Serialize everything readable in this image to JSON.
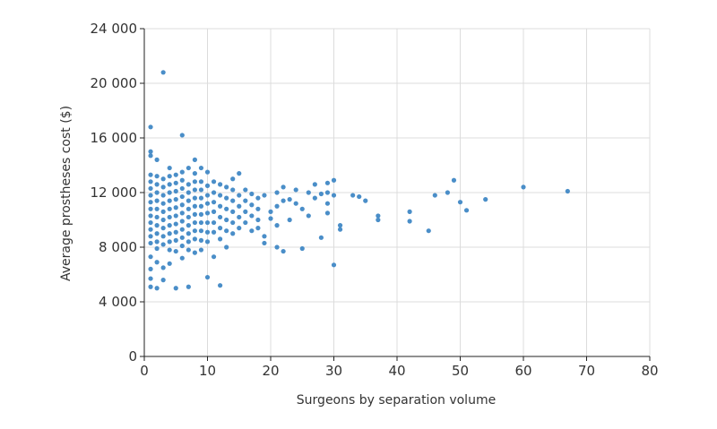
{
  "chart_data": {
    "type": "scatter",
    "title": "",
    "xlabel": "Surgeons by separation volume",
    "ylabel": "Average prostheses cost ($)",
    "xlim": [
      0,
      80
    ],
    "ylim": [
      0,
      24000
    ],
    "x_ticks": [
      0,
      10,
      20,
      30,
      40,
      50,
      60,
      70,
      80
    ],
    "x_tick_labels": [
      "0",
      "10",
      "20",
      "30",
      "40",
      "50",
      "60",
      "70",
      "80"
    ],
    "y_ticks": [
      0,
      4000,
      8000,
      12000,
      16000,
      20000,
      24000
    ],
    "y_tick_labels": [
      "0",
      "4 000",
      "8 000",
      "12 000",
      "16 000",
      "20 000",
      "24 000"
    ],
    "grid": true,
    "point_color": "#4a8ec8",
    "series": [
      {
        "points": [
          [
            1,
            16800
          ],
          [
            1,
            15000
          ],
          [
            1,
            14700
          ],
          [
            1,
            13300
          ],
          [
            1,
            12800
          ],
          [
            1,
            12300
          ],
          [
            1,
            11800
          ],
          [
            1,
            11300
          ],
          [
            1,
            10800
          ],
          [
            1,
            10300
          ],
          [
            1,
            9800
          ],
          [
            1,
            9300
          ],
          [
            1,
            8800
          ],
          [
            1,
            8300
          ],
          [
            1,
            7300
          ],
          [
            1,
            6400
          ],
          [
            1,
            5700
          ],
          [
            1,
            5100
          ],
          [
            2,
            14400
          ],
          [
            2,
            13200
          ],
          [
            2,
            12600
          ],
          [
            2,
            12000
          ],
          [
            2,
            11400
          ],
          [
            2,
            10800
          ],
          [
            2,
            10200
          ],
          [
            2,
            9600
          ],
          [
            2,
            9000
          ],
          [
            2,
            8400
          ],
          [
            2,
            7900
          ],
          [
            2,
            6900
          ],
          [
            2,
            5000
          ],
          [
            3,
            20800
          ],
          [
            3,
            13000
          ],
          [
            3,
            12400
          ],
          [
            3,
            11800
          ],
          [
            3,
            11200
          ],
          [
            3,
            10600
          ],
          [
            3,
            10000
          ],
          [
            3,
            9400
          ],
          [
            3,
            8800
          ],
          [
            3,
            8200
          ],
          [
            3,
            6500
          ],
          [
            3,
            5600
          ],
          [
            4,
            13800
          ],
          [
            4,
            13200
          ],
          [
            4,
            12600
          ],
          [
            4,
            12000
          ],
          [
            4,
            11400
          ],
          [
            4,
            10800
          ],
          [
            4,
            10200
          ],
          [
            4,
            9600
          ],
          [
            4,
            9000
          ],
          [
            4,
            8400
          ],
          [
            4,
            7800
          ],
          [
            4,
            6800
          ],
          [
            5,
            13300
          ],
          [
            5,
            12700
          ],
          [
            5,
            12100
          ],
          [
            5,
            11500
          ],
          [
            5,
            10900
          ],
          [
            5,
            10300
          ],
          [
            5,
            9700
          ],
          [
            5,
            9100
          ],
          [
            5,
            8500
          ],
          [
            5,
            7700
          ],
          [
            5,
            5000
          ],
          [
            6,
            16200
          ],
          [
            6,
            13500
          ],
          [
            6,
            12900
          ],
          [
            6,
            12300
          ],
          [
            6,
            11700
          ],
          [
            6,
            11100
          ],
          [
            6,
            10500
          ],
          [
            6,
            9900
          ],
          [
            6,
            9300
          ],
          [
            6,
            8700
          ],
          [
            6,
            8100
          ],
          [
            6,
            7200
          ],
          [
            7,
            13800
          ],
          [
            7,
            12600
          ],
          [
            7,
            12000
          ],
          [
            7,
            11400
          ],
          [
            7,
            10800
          ],
          [
            7,
            10200
          ],
          [
            7,
            9600
          ],
          [
            7,
            9000
          ],
          [
            7,
            8400
          ],
          [
            7,
            7800
          ],
          [
            7,
            5100
          ],
          [
            8,
            14400
          ],
          [
            8,
            13400
          ],
          [
            8,
            12800
          ],
          [
            8,
            12200
          ],
          [
            8,
            11600
          ],
          [
            8,
            11000
          ],
          [
            8,
            10400
          ],
          [
            8,
            9800
          ],
          [
            8,
            9200
          ],
          [
            8,
            8600
          ],
          [
            8,
            7600
          ],
          [
            9,
            13800
          ],
          [
            9,
            12800
          ],
          [
            9,
            12200
          ],
          [
            9,
            11600
          ],
          [
            9,
            11000
          ],
          [
            9,
            10400
          ],
          [
            9,
            9800
          ],
          [
            9,
            9200
          ],
          [
            9,
            8500
          ],
          [
            9,
            7800
          ],
          [
            10,
            13500
          ],
          [
            10,
            12500
          ],
          [
            10,
            11800
          ],
          [
            10,
            11200
          ],
          [
            10,
            10500
          ],
          [
            10,
            9800
          ],
          [
            10,
            9100
          ],
          [
            10,
            8400
          ],
          [
            10,
            5800
          ],
          [
            11,
            12800
          ],
          [
            11,
            12000
          ],
          [
            11,
            11300
          ],
          [
            11,
            10600
          ],
          [
            11,
            9800
          ],
          [
            11,
            9100
          ],
          [
            11,
            7300
          ],
          [
            12,
            12600
          ],
          [
            12,
            11800
          ],
          [
            12,
            11000
          ],
          [
            12,
            10200
          ],
          [
            12,
            9400
          ],
          [
            12,
            8600
          ],
          [
            12,
            5200
          ],
          [
            13,
            12400
          ],
          [
            13,
            11600
          ],
          [
            13,
            10800
          ],
          [
            13,
            10000
          ],
          [
            13,
            9200
          ],
          [
            13,
            8000
          ],
          [
            14,
            13000
          ],
          [
            14,
            12200
          ],
          [
            14,
            11400
          ],
          [
            14,
            10600
          ],
          [
            14,
            9800
          ],
          [
            14,
            9000
          ],
          [
            15,
            13400
          ],
          [
            15,
            11800
          ],
          [
            15,
            11000
          ],
          [
            15,
            10200
          ],
          [
            15,
            9400
          ],
          [
            16,
            12200
          ],
          [
            16,
            11400
          ],
          [
            16,
            10600
          ],
          [
            16,
            9800
          ],
          [
            17,
            11900
          ],
          [
            17,
            11100
          ],
          [
            17,
            10300
          ],
          [
            17,
            9200
          ],
          [
            18,
            11600
          ],
          [
            18,
            10800
          ],
          [
            18,
            10000
          ],
          [
            18,
            9400
          ],
          [
            19,
            11800
          ],
          [
            19,
            8800
          ],
          [
            19,
            8300
          ],
          [
            20,
            10600
          ],
          [
            20,
            10100
          ],
          [
            21,
            12000
          ],
          [
            21,
            11000
          ],
          [
            21,
            9600
          ],
          [
            21,
            8000
          ],
          [
            22,
            12400
          ],
          [
            22,
            11400
          ],
          [
            22,
            7700
          ],
          [
            23,
            11500
          ],
          [
            23,
            10000
          ],
          [
            24,
            12200
          ],
          [
            24,
            11200
          ],
          [
            25,
            10800
          ],
          [
            25,
            7900
          ],
          [
            26,
            12000
          ],
          [
            26,
            10300
          ],
          [
            27,
            12600
          ],
          [
            27,
            11600
          ],
          [
            28,
            11900
          ],
          [
            28,
            8700
          ],
          [
            29,
            12700
          ],
          [
            29,
            12000
          ],
          [
            29,
            11200
          ],
          [
            29,
            10500
          ],
          [
            30,
            12900
          ],
          [
            30,
            11800
          ],
          [
            30,
            6700
          ],
          [
            31,
            9600
          ],
          [
            31,
            9300
          ],
          [
            33,
            11800
          ],
          [
            34,
            11700
          ],
          [
            35,
            11400
          ],
          [
            37,
            10300
          ],
          [
            37,
            10000
          ],
          [
            42,
            10600
          ],
          [
            42,
            9900
          ],
          [
            45,
            9200
          ],
          [
            46,
            11800
          ],
          [
            48,
            12000
          ],
          [
            49,
            12900
          ],
          [
            50,
            11300
          ],
          [
            51,
            10700
          ],
          [
            54,
            11500
          ],
          [
            60,
            12400
          ],
          [
            67,
            12100
          ]
        ]
      }
    ]
  }
}
